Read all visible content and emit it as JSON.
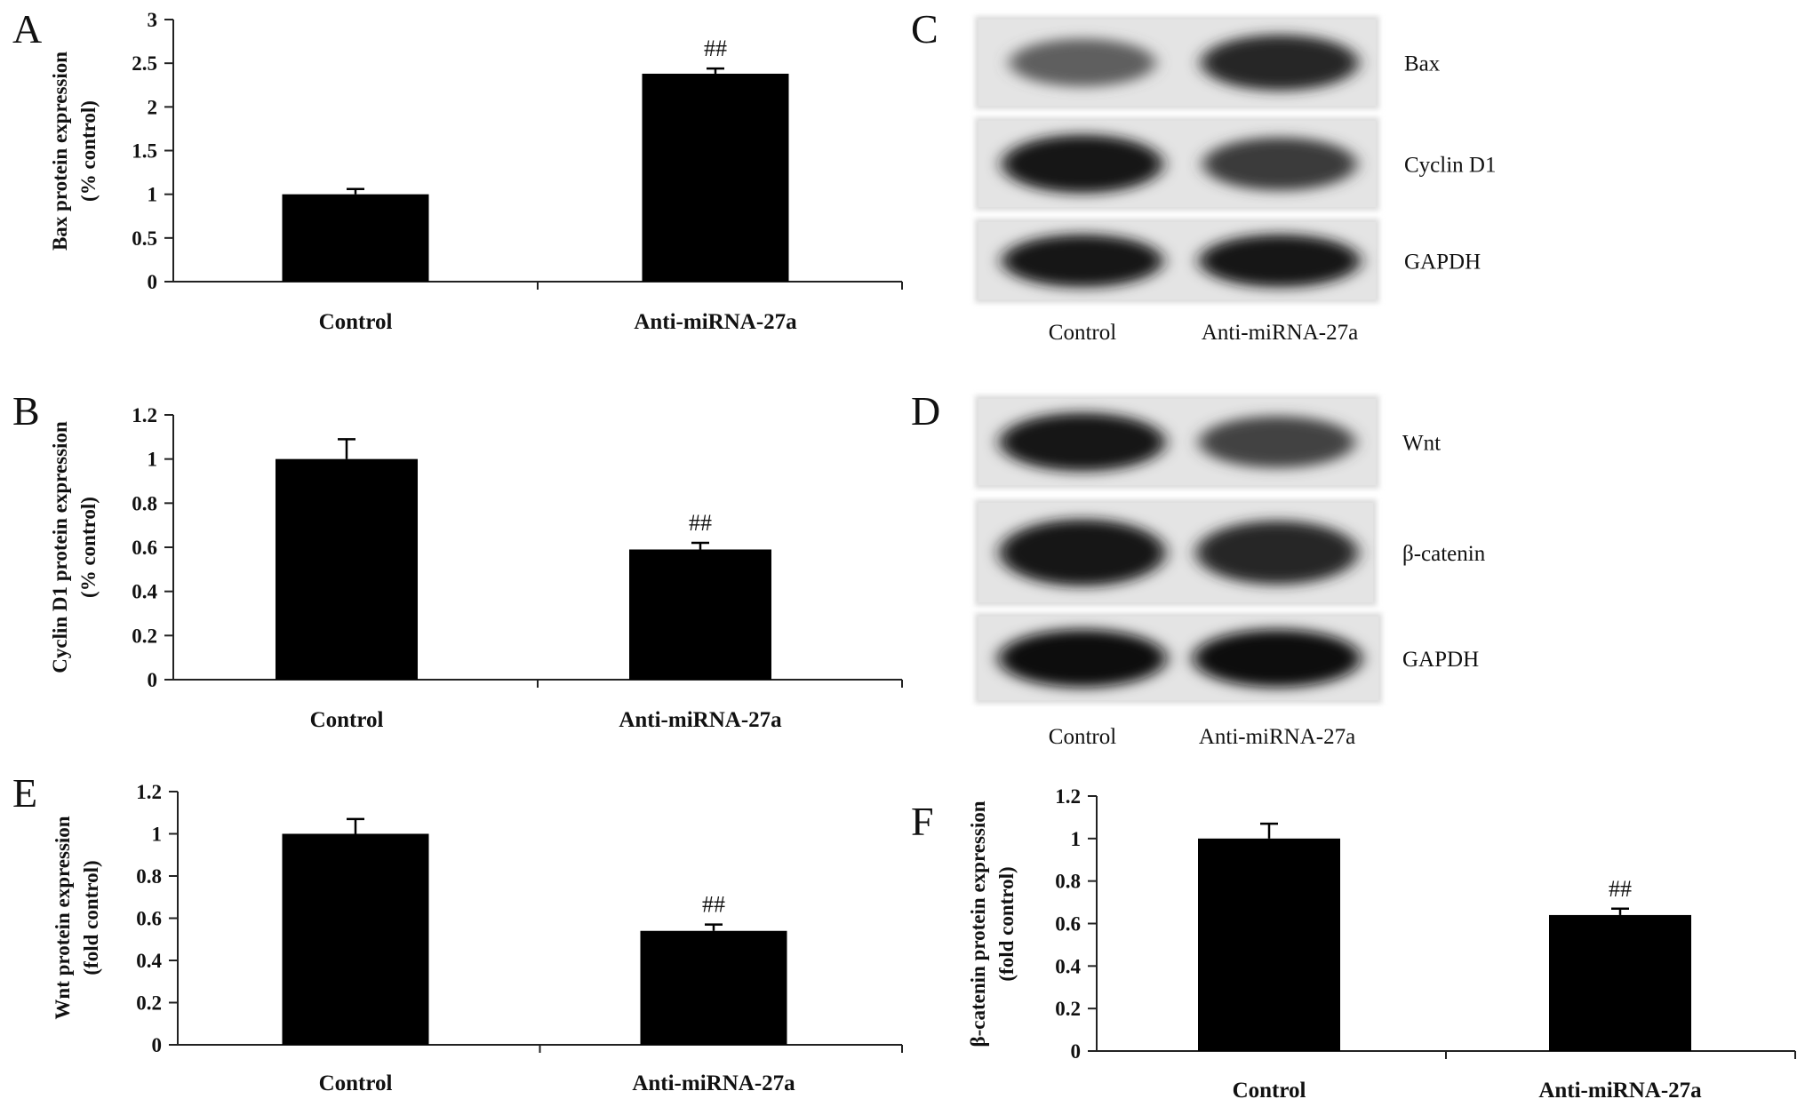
{
  "panels": {
    "A": "A",
    "B": "B",
    "C": "C",
    "D": "D",
    "E": "E",
    "F": "F"
  },
  "chart_data": [
    {
      "type": "bar",
      "panel": "A",
      "categories": [
        "Control",
        "Anti-miRNA-27a"
      ],
      "values": [
        1.0,
        2.38
      ],
      "errors": [
        0.06,
        0.06
      ],
      "annotations": [
        "",
        "##"
      ],
      "ylabel": [
        "Bax protein expression",
        "(% control)"
      ],
      "ylim": [
        0,
        3
      ],
      "yticks": [
        0,
        0.5,
        1,
        1.5,
        2,
        2.5,
        3
      ],
      "yticklabels": [
        "0",
        "0.5",
        "1",
        "1.5",
        "2",
        "2.5",
        "3"
      ]
    },
    {
      "type": "bar",
      "panel": "B",
      "categories": [
        "Control",
        "Anti-miRNA-27a"
      ],
      "values": [
        1.0,
        0.59
      ],
      "errors": [
        0.09,
        0.03
      ],
      "annotations": [
        "",
        "##"
      ],
      "ylabel": [
        "Cyclin D1 protein expression",
        "(% control)"
      ],
      "ylim": [
        0,
        1.2
      ],
      "yticks": [
        0,
        0.2,
        0.4,
        0.6,
        0.8,
        1,
        1.2
      ],
      "yticklabels": [
        "0",
        "0.2",
        "0.4",
        "0.6",
        "0.8",
        "1",
        "1.2"
      ]
    },
    {
      "type": "bar",
      "panel": "E",
      "categories": [
        "Control",
        "Anti-miRNA-27a"
      ],
      "values": [
        1.0,
        0.54
      ],
      "errors": [
        0.07,
        0.03
      ],
      "annotations": [
        "",
        "##"
      ],
      "ylabel": [
        "Wnt protein expression",
        "(fold control)"
      ],
      "ylim": [
        0,
        1.2
      ],
      "yticks": [
        0,
        0.2,
        0.4,
        0.6,
        0.8,
        1,
        1.2
      ],
      "yticklabels": [
        "0",
        "0.2",
        "0.4",
        "0.6",
        "0.8",
        "1",
        "1.2"
      ]
    },
    {
      "type": "bar",
      "panel": "F",
      "categories": [
        "Control",
        "Anti-miRNA-27a"
      ],
      "values": [
        1.0,
        0.64
      ],
      "errors": [
        0.07,
        0.03
      ],
      "annotations": [
        "",
        "##"
      ],
      "ylabel": [
        "β-catenin protein expression",
        "(fold control)"
      ],
      "ylim": [
        0,
        1.2
      ],
      "yticks": [
        0,
        0.2,
        0.4,
        0.6,
        0.8,
        1,
        1.2
      ],
      "yticklabels": [
        "0",
        "0.2",
        "0.4",
        "0.6",
        "0.8",
        "1",
        "1.2"
      ]
    }
  ],
  "blots": [
    {
      "panel": "C",
      "lanes": [
        "Control",
        "Anti-miRNA-27a"
      ],
      "bands": [
        {
          "label": "Bax",
          "intensity": [
            0.55,
            0.85
          ]
        },
        {
          "label": "Cyclin D1",
          "intensity": [
            0.95,
            0.75
          ]
        },
        {
          "label": "GAPDH",
          "intensity": [
            0.95,
            0.95
          ]
        }
      ]
    },
    {
      "panel": "D",
      "lanes": [
        "Control",
        "Anti-miRNA-27a"
      ],
      "bands": [
        {
          "label": "Wnt",
          "intensity": [
            0.95,
            0.7
          ]
        },
        {
          "label": "β-catenin",
          "intensity": [
            0.95,
            0.85
          ]
        },
        {
          "label": "GAPDH",
          "intensity": [
            1.0,
            1.0
          ]
        }
      ]
    }
  ]
}
